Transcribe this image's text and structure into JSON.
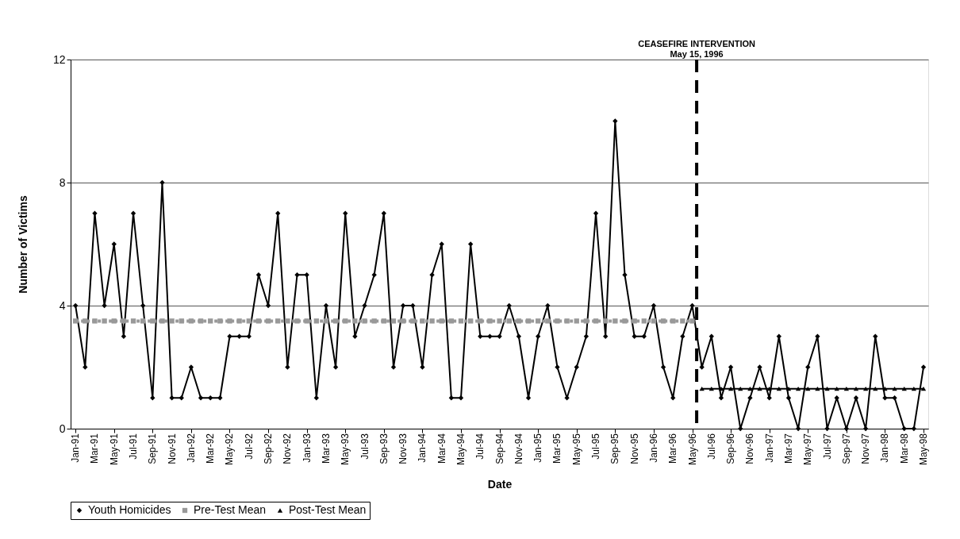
{
  "chart_data": {
    "type": "line",
    "xlabel": "Date",
    "ylabel": "Number of Victims",
    "x": [
      "1991-01",
      "1991-02",
      "1991-03",
      "1991-04",
      "1991-05",
      "1991-06",
      "1991-07",
      "1991-08",
      "1991-09",
      "1991-10",
      "1991-11",
      "1991-12",
      "1992-01",
      "1992-02",
      "1992-03",
      "1992-04",
      "1992-05",
      "1992-06",
      "1992-07",
      "1992-08",
      "1992-09",
      "1992-10",
      "1992-11",
      "1992-12",
      "1993-01",
      "1993-02",
      "1993-03",
      "1993-04",
      "1993-05",
      "1993-06",
      "1993-07",
      "1993-08",
      "1993-09",
      "1993-10",
      "1993-11",
      "1993-12",
      "1994-01",
      "1994-02",
      "1994-03",
      "1994-04",
      "1994-05",
      "1994-06",
      "1994-07",
      "1994-08",
      "1994-09",
      "1994-10",
      "1994-11",
      "1994-12",
      "1995-01",
      "1995-02",
      "1995-03",
      "1995-04",
      "1995-05",
      "1995-06",
      "1995-07",
      "1995-08",
      "1995-09",
      "1995-10",
      "1995-11",
      "1995-12",
      "1996-01",
      "1996-02",
      "1996-03",
      "1996-04",
      "1996-05",
      "1996-06",
      "1996-07",
      "1996-08",
      "1996-09",
      "1996-10",
      "1996-11",
      "1996-12",
      "1997-01",
      "1997-02",
      "1997-03",
      "1997-04",
      "1997-05",
      "1997-06",
      "1997-07",
      "1997-08",
      "1997-09",
      "1997-10",
      "1997-11",
      "1997-12",
      "1998-01",
      "1998-02",
      "1998-03",
      "1998-04",
      "1998-05"
    ],
    "series": [
      {
        "name": "Youth Homicides",
        "color": "#000000",
        "marker": "diamond",
        "line_style": "solid",
        "values": [
          4,
          2,
          7,
          4,
          6,
          3,
          7,
          4,
          1,
          8,
          1,
          1,
          2,
          1,
          1,
          1,
          3,
          3,
          3,
          5,
          4,
          7,
          2,
          5,
          5,
          1,
          4,
          2,
          7,
          3,
          4,
          5,
          7,
          2,
          4,
          4,
          2,
          5,
          6,
          1,
          1,
          6,
          3,
          3,
          3,
          4,
          3,
          1,
          3,
          4,
          2,
          1,
          2,
          3,
          7,
          3,
          10,
          5,
          3,
          3,
          4,
          2,
          1,
          3,
          4,
          2,
          3,
          1,
          2,
          0,
          1,
          2,
          1,
          3,
          1,
          0,
          2,
          3,
          0,
          1,
          0,
          1,
          0,
          3,
          1,
          1,
          0,
          0,
          2
        ]
      },
      {
        "name": "Pre-Test Mean",
        "color": "#999999",
        "marker": "square",
        "line_style": "dashed",
        "values": [
          3.5,
          3.5,
          3.5,
          3.5,
          3.5,
          3.5,
          3.5,
          3.5,
          3.5,
          3.5,
          3.5,
          3.5,
          3.5,
          3.5,
          3.5,
          3.5,
          3.5,
          3.5,
          3.5,
          3.5,
          3.5,
          3.5,
          3.5,
          3.5,
          3.5,
          3.5,
          3.5,
          3.5,
          3.5,
          3.5,
          3.5,
          3.5,
          3.5,
          3.5,
          3.5,
          3.5,
          3.5,
          3.5,
          3.5,
          3.5,
          3.5,
          3.5,
          3.5,
          3.5,
          3.5,
          3.5,
          3.5,
          3.5,
          3.5,
          3.5,
          3.5,
          3.5,
          3.5,
          3.5,
          3.5,
          3.5,
          3.5,
          3.5,
          3.5,
          3.5,
          3.5,
          3.5,
          3.5,
          3.5,
          3.5,
          null,
          null,
          null,
          null,
          null,
          null,
          null,
          null,
          null,
          null,
          null,
          null,
          null,
          null,
          null,
          null,
          null,
          null,
          null,
          null,
          null,
          null,
          null,
          null
        ]
      },
      {
        "name": "Post-Test Mean",
        "color": "#000000",
        "marker": "triangle",
        "line_style": "solid",
        "values": [
          null,
          null,
          null,
          null,
          null,
          null,
          null,
          null,
          null,
          null,
          null,
          null,
          null,
          null,
          null,
          null,
          null,
          null,
          null,
          null,
          null,
          null,
          null,
          null,
          null,
          null,
          null,
          null,
          null,
          null,
          null,
          null,
          null,
          null,
          null,
          null,
          null,
          null,
          null,
          null,
          null,
          null,
          null,
          null,
          null,
          null,
          null,
          null,
          null,
          null,
          null,
          null,
          null,
          null,
          null,
          null,
          null,
          null,
          null,
          null,
          null,
          null,
          null,
          null,
          null,
          1.3,
          1.3,
          1.3,
          1.3,
          1.3,
          1.3,
          1.3,
          1.3,
          1.3,
          1.3,
          1.3,
          1.3,
          1.3,
          1.3,
          1.3,
          1.3,
          1.3,
          1.3,
          1.3,
          1.3,
          1.3,
          1.3,
          1.3,
          1.3
        ]
      }
    ],
    "xlim": [
      "1990-12-16",
      "1998-05-16"
    ],
    "xticks": [
      {
        "value": "1991-01",
        "label": "Jan-91"
      },
      {
        "value": "1991-03",
        "label": "Mar-91"
      },
      {
        "value": "1991-05",
        "label": "May-91"
      },
      {
        "value": "1991-07",
        "label": "Jul-91"
      },
      {
        "value": "1991-09",
        "label": "Sep-91"
      },
      {
        "value": "1991-11",
        "label": "Nov-91"
      },
      {
        "value": "1992-01",
        "label": "Jan-92"
      },
      {
        "value": "1992-03",
        "label": "Mar-92"
      },
      {
        "value": "1992-05",
        "label": "May-92"
      },
      {
        "value": "1992-07",
        "label": "Jul-92"
      },
      {
        "value": "1992-09",
        "label": "Sep-92"
      },
      {
        "value": "1992-11",
        "label": "Nov-92"
      },
      {
        "value": "1993-01",
        "label": "Jan-93"
      },
      {
        "value": "1993-03",
        "label": "Mar-93"
      },
      {
        "value": "1993-05",
        "label": "May-93"
      },
      {
        "value": "1993-07",
        "label": "Jul-93"
      },
      {
        "value": "1993-09",
        "label": "Sep-93"
      },
      {
        "value": "1993-11",
        "label": "Nov-93"
      },
      {
        "value": "1994-01",
        "label": "Jan-94"
      },
      {
        "value": "1994-03",
        "label": "Mar-94"
      },
      {
        "value": "1994-05",
        "label": "May-94"
      },
      {
        "value": "1994-07",
        "label": "Jul-94"
      },
      {
        "value": "1994-09",
        "label": "Sep-94"
      },
      {
        "value": "1994-11",
        "label": "Nov-94"
      },
      {
        "value": "1995-01",
        "label": "Jan-95"
      },
      {
        "value": "1995-03",
        "label": "Mar-95"
      },
      {
        "value": "1995-05",
        "label": "May-95"
      },
      {
        "value": "1995-07",
        "label": "Jul-95"
      },
      {
        "value": "1995-09",
        "label": "Sep-95"
      },
      {
        "value": "1995-11",
        "label": "Nov-95"
      },
      {
        "value": "1996-01",
        "label": "Jan-96"
      },
      {
        "value": "1996-03",
        "label": "Mar-96"
      },
      {
        "value": "1996-05",
        "label": "May-96"
      },
      {
        "value": "1996-07",
        "label": "Jul-96"
      },
      {
        "value": "1996-09",
        "label": "Sep-96"
      },
      {
        "value": "1996-11",
        "label": "Nov-96"
      },
      {
        "value": "1997-01",
        "label": "Jan-97"
      },
      {
        "value": "1997-03",
        "label": "Mar-97"
      },
      {
        "value": "1997-05",
        "label": "May-97"
      },
      {
        "value": "1997-07",
        "label": "Jul-97"
      },
      {
        "value": "1997-09",
        "label": "Sep-97"
      },
      {
        "value": "1997-11",
        "label": "Nov-97"
      },
      {
        "value": "1998-01",
        "label": "Jan-98"
      },
      {
        "value": "1998-03",
        "label": "Mar-98"
      },
      {
        "value": "1998-05",
        "label": "May-98"
      }
    ],
    "ylim": [
      0,
      12
    ],
    "yticks": [
      0,
      4,
      8,
      12
    ],
    "ref_lines": [
      {
        "axis": "x",
        "value": "1996-05-15",
        "label": "CEASEFIRE INTERVENTION\nMay 15, 1996",
        "color": "#000000",
        "line_style": "dashed"
      }
    ],
    "grid": "y",
    "legend": "bottom"
  }
}
